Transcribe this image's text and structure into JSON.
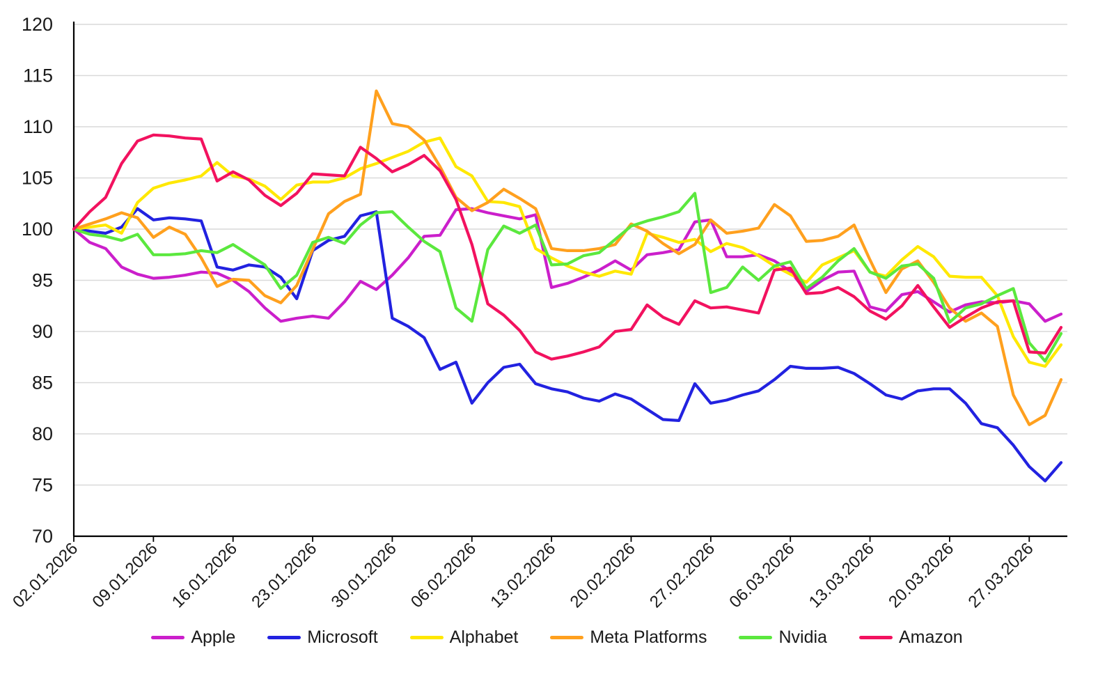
{
  "chart_data": {
    "type": "line",
    "title": "",
    "xlabel": "",
    "ylabel": "",
    "grid": true,
    "legend_position": "bottom",
    "y_axis": {
      "min": 70,
      "max": 120,
      "step": 5,
      "tick_labels": [
        "70",
        "75",
        "80",
        "85",
        "90",
        "95",
        "100",
        "105",
        "110",
        "115",
        "120"
      ]
    },
    "x_axis": {
      "points_per_series": 63,
      "tick_indices": [
        0,
        5,
        10,
        15,
        20,
        25,
        30,
        35,
        40,
        45,
        50,
        55,
        60
      ],
      "tick_labels": [
        "02.01.2026",
        "09.01.2026",
        "16.01.2026",
        "23.01.2026",
        "30.01.2026",
        "06.02.2026",
        "13.02.2026",
        "20.02.2026",
        "27.02.2026",
        "06.03.2026",
        "13.03.2026",
        "20.03.2026",
        "27.03.2026"
      ]
    },
    "series": [
      {
        "name": "Apple",
        "color": "#cb1fcb",
        "values": [
          100,
          98.7,
          98.1,
          96.3,
          95.6,
          95.2,
          95.3,
          95.5,
          95.8,
          95.7,
          95.0,
          93.9,
          92.3,
          91.0,
          91.3,
          91.5,
          91.3,
          92.9,
          94.9,
          94.1,
          95.5,
          97.2,
          99.3,
          99.4,
          101.9,
          102.0,
          101.6,
          101.3,
          101.0,
          101.4,
          94.3,
          94.7,
          95.3,
          96.0,
          96.9,
          96.0,
          97.5,
          97.7,
          98.0,
          100.7,
          100.9,
          97.3,
          97.3,
          97.5,
          96.9,
          95.9,
          93.9,
          95.0,
          95.8,
          95.9,
          92.4,
          92.0,
          93.6,
          93.9,
          92.9,
          91.9,
          92.6,
          92.9,
          92.8,
          93.0,
          92.7,
          91.0,
          91.7
        ]
      },
      {
        "name": "Microsoft",
        "color": "#2222e0",
        "values": [
          100,
          99.8,
          99.6,
          100.2,
          102.0,
          100.9,
          101.1,
          101.0,
          100.8,
          96.3,
          96.0,
          96.5,
          96.3,
          95.3,
          93.2,
          97.9,
          98.9,
          99.3,
          101.3,
          101.7,
          91.3,
          90.5,
          89.4,
          86.3,
          87.0,
          83.0,
          85.0,
          86.5,
          86.8,
          84.9,
          84.4,
          84.1,
          83.5,
          83.2,
          83.9,
          83.4,
          82.4,
          81.4,
          81.3,
          84.9,
          83.0,
          83.3,
          83.8,
          84.2,
          85.3,
          86.6,
          86.4,
          86.4,
          86.5,
          85.9,
          84.9,
          83.8,
          83.4,
          84.2,
          84.4,
          84.4,
          83.0,
          81.0,
          80.6,
          78.9,
          76.8,
          75.4,
          77.2
        ]
      },
      {
        "name": "Alphabet",
        "color": "#ffe800",
        "values": [
          100,
          100.2,
          100.4,
          99.6,
          102.6,
          104.0,
          104.5,
          104.8,
          105.2,
          106.5,
          105.2,
          104.9,
          104.2,
          102.9,
          104.3,
          104.6,
          104.6,
          105.0,
          105.9,
          106.4,
          107.0,
          107.6,
          108.5,
          108.9,
          106.1,
          105.2,
          102.7,
          102.6,
          102.2,
          98.1,
          97.2,
          96.4,
          95.8,
          95.4,
          95.9,
          95.6,
          99.6,
          99.2,
          98.7,
          99.0,
          97.8,
          98.6,
          98.2,
          97.4,
          96.4,
          95.6,
          94.8,
          96.5,
          97.2,
          97.9,
          95.8,
          95.4,
          97.0,
          98.3,
          97.3,
          95.4,
          95.3,
          95.3,
          93.5,
          89.5,
          87.0,
          86.6,
          88.7
        ]
      },
      {
        "name": "Meta Platforms",
        "color": "#ffa01e",
        "values": [
          100,
          100.5,
          101.0,
          101.6,
          101.1,
          99.2,
          100.2,
          99.5,
          97.2,
          94.4,
          95.1,
          95.0,
          93.5,
          92.8,
          94.5,
          98.0,
          101.5,
          102.7,
          103.4,
          113.5,
          110.3,
          110.0,
          108.7,
          106.1,
          103.1,
          101.8,
          102.6,
          103.9,
          103.0,
          102.0,
          98.1,
          97.9,
          97.9,
          98.1,
          98.5,
          100.5,
          99.8,
          98.6,
          97.6,
          98.5,
          100.9,
          99.6,
          99.8,
          100.1,
          102.4,
          101.3,
          98.8,
          98.9,
          99.3,
          100.4,
          97.0,
          93.8,
          96.1,
          96.9,
          94.8,
          92.3,
          91.0,
          91.8,
          90.5,
          83.8,
          80.9,
          81.8,
          85.3
        ]
      },
      {
        "name": "Nvidia",
        "color": "#5be83e",
        "values": [
          100,
          99.5,
          99.3,
          98.9,
          99.5,
          97.5,
          97.5,
          97.6,
          97.9,
          97.7,
          98.5,
          97.5,
          96.5,
          94.2,
          95.5,
          98.7,
          99.2,
          98.6,
          100.4,
          101.6,
          101.7,
          100.2,
          98.8,
          97.8,
          92.3,
          91.0,
          98.0,
          100.3,
          99.6,
          100.4,
          96.5,
          96.6,
          97.4,
          97.7,
          99.0,
          100.3,
          100.8,
          101.2,
          101.7,
          103.5,
          93.8,
          94.3,
          96.3,
          95.0,
          96.4,
          96.8,
          94.2,
          95.3,
          96.9,
          98.1,
          95.8,
          95.2,
          96.4,
          96.6,
          95.2,
          90.9,
          92.3,
          92.7,
          93.5,
          94.2,
          88.9,
          87.1,
          89.8
        ]
      },
      {
        "name": "Amazon",
        "color": "#f2125f",
        "values": [
          100,
          101.7,
          103.1,
          106.4,
          108.6,
          109.2,
          109.1,
          108.9,
          108.8,
          104.7,
          105.6,
          104.8,
          103.3,
          102.3,
          103.5,
          105.4,
          105.3,
          105.2,
          108.0,
          106.9,
          105.6,
          106.3,
          107.2,
          105.7,
          102.9,
          98.5,
          92.7,
          91.6,
          90.1,
          88.0,
          87.3,
          87.6,
          88.0,
          88.5,
          90.0,
          90.2,
          92.6,
          91.4,
          90.7,
          93.0,
          92.3,
          92.4,
          92.1,
          91.8,
          96.0,
          96.2,
          93.7,
          93.8,
          94.3,
          93.4,
          92.0,
          91.2,
          92.5,
          94.5,
          92.4,
          90.4,
          91.4,
          92.3,
          92.9,
          93.0,
          88.0,
          87.9,
          90.4
        ]
      }
    ]
  },
  "style_colors": {
    "grid": "#d9d9d9",
    "axis": "#000000",
    "text": "#1a1a1a",
    "background": "#ffffff"
  }
}
